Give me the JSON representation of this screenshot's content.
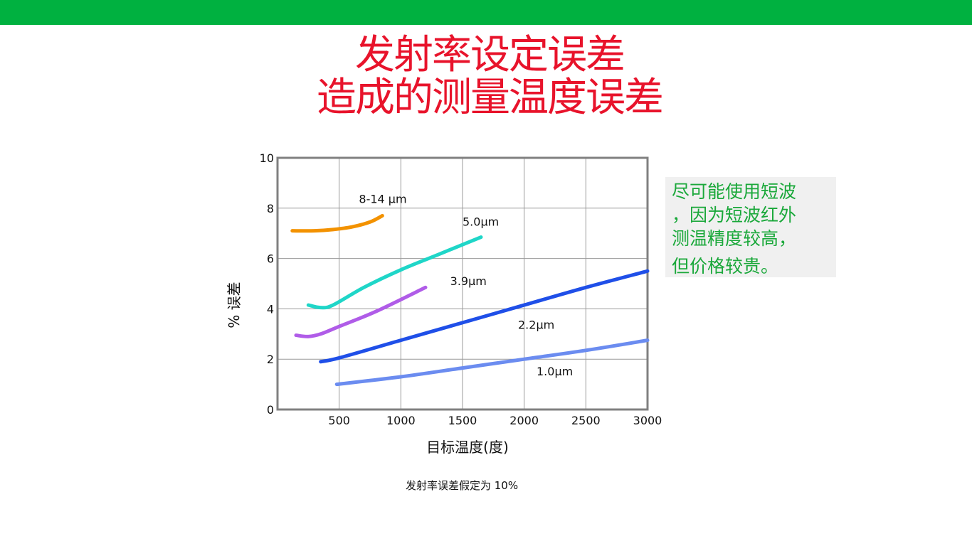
{
  "slide": {
    "title_line1": "发射率设定误差",
    "title_line2": "造成的测量温度误差",
    "callout_lines": [
      "尽可能使用短波",
      "，因为短波红外",
      "测温精度较高，",
      "但价格较贵。"
    ],
    "footnote": "发射率误差假定为 10%"
  },
  "colors": {
    "top_bar": "#00b140",
    "title": "#e8132b",
    "callout_text": "#1aa83a",
    "callout_bg": "#f0f0f0"
  },
  "chart_data": {
    "type": "line",
    "xlabel": "目标温度(度)",
    "ylabel": "% 误差",
    "xlim": [
      0,
      3000
    ],
    "ylim": [
      0,
      10
    ],
    "x_ticks": [
      500,
      1000,
      1500,
      2000,
      2500,
      3000
    ],
    "y_ticks": [
      0,
      2,
      4,
      6,
      8,
      10
    ],
    "grid": true,
    "legend": "none (inline curve labels)",
    "series": [
      {
        "name": "8-14 µm",
        "color": "#f39200",
        "points": [
          [
            120,
            7.1
          ],
          [
            300,
            7.1
          ],
          [
            450,
            7.15
          ],
          [
            600,
            7.25
          ],
          [
            750,
            7.45
          ],
          [
            850,
            7.7
          ]
        ]
      },
      {
        "name": "5.0µm",
        "color": "#1fd6c8",
        "points": [
          [
            250,
            4.15
          ],
          [
            350,
            4.05
          ],
          [
            450,
            4.15
          ],
          [
            700,
            4.85
          ],
          [
            1000,
            5.55
          ],
          [
            1300,
            6.15
          ],
          [
            1650,
            6.85
          ]
        ]
      },
      {
        "name": "3.9µm",
        "color": "#b05ce8",
        "points": [
          [
            150,
            2.95
          ],
          [
            250,
            2.9
          ],
          [
            350,
            3.0
          ],
          [
            500,
            3.3
          ],
          [
            800,
            3.9
          ],
          [
            1200,
            4.85
          ]
        ]
      },
      {
        "name": "2.2µm",
        "color": "#1f4fe8",
        "points": [
          [
            350,
            1.9
          ],
          [
            500,
            2.05
          ],
          [
            1000,
            2.75
          ],
          [
            1500,
            3.45
          ],
          [
            2000,
            4.15
          ],
          [
            2500,
            4.85
          ],
          [
            3000,
            5.5
          ]
        ]
      },
      {
        "name": "1.0µm",
        "color": "#6b8cf0",
        "points": [
          [
            480,
            1.0
          ],
          [
            1000,
            1.3
          ],
          [
            1500,
            1.65
          ],
          [
            2000,
            2.0
          ],
          [
            2500,
            2.35
          ],
          [
            3000,
            2.75
          ]
        ]
      }
    ]
  }
}
